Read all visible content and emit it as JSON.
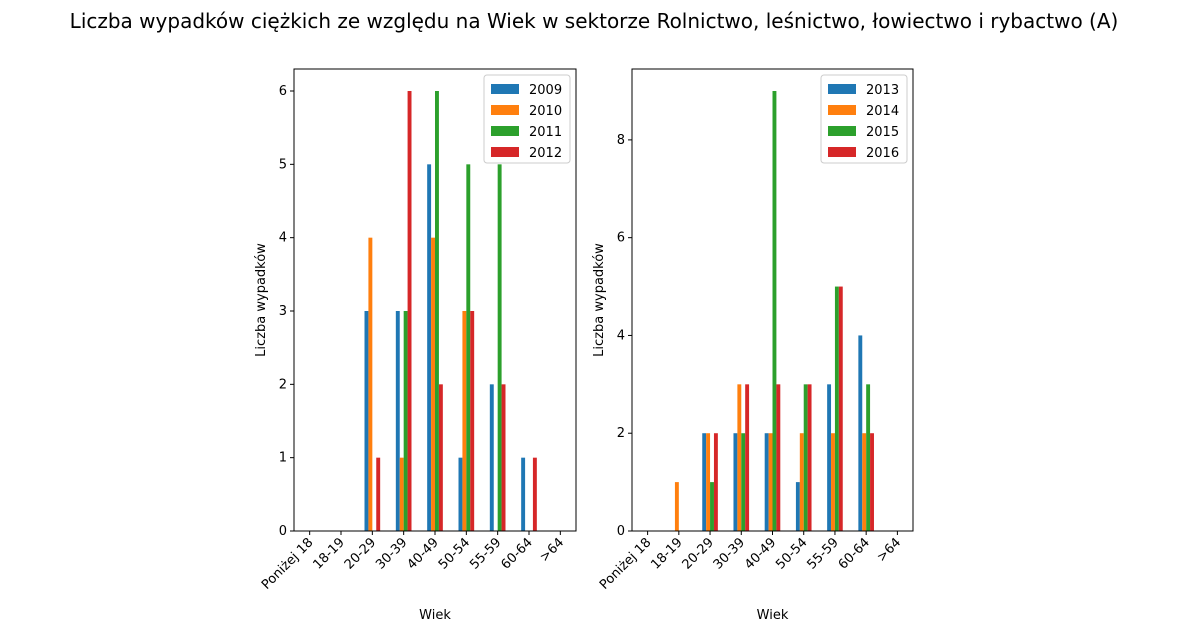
{
  "figure": {
    "title": "Liczba wypadków ciężkich ze względu na Wiek w sektorze Rolnictwo, leśnictwo, łowiectwo i rybactwo (A)"
  },
  "colors": [
    "#1f77b4",
    "#ff7f0e",
    "#2ca02c",
    "#d62728"
  ],
  "chart_data": [
    {
      "type": "bar",
      "title": "",
      "xlabel": "Wiek",
      "ylabel": "Liczba wypadków",
      "categories": [
        "Poniżej 18",
        "18-19",
        "20-29",
        "30-39",
        "40-49",
        "50-54",
        "55-59",
        "60-64",
        ">64"
      ],
      "ylim": [
        0,
        6.3
      ],
      "yticks": [
        0,
        1,
        2,
        3,
        4,
        5,
        6
      ],
      "legend_position": "top-right",
      "series": [
        {
          "name": "2009",
          "values": [
            0,
            0,
            3,
            3,
            5,
            1,
            2,
            1,
            0
          ]
        },
        {
          "name": "2010",
          "values": [
            0,
            0,
            4,
            1,
            4,
            3,
            0,
            0,
            0
          ]
        },
        {
          "name": "2011",
          "values": [
            0,
            0,
            0,
            3,
            6,
            5,
            5,
            0,
            0
          ]
        },
        {
          "name": "2012",
          "values": [
            0,
            0,
            1,
            6,
            2,
            3,
            2,
            1,
            0
          ]
        }
      ]
    },
    {
      "type": "bar",
      "title": "",
      "xlabel": "Wiek",
      "ylabel": "Liczba wypadków",
      "categories": [
        "Poniżej 18",
        "18-19",
        "20-29",
        "30-39",
        "40-49",
        "50-54",
        "55-59",
        "60-64",
        ">64"
      ],
      "ylim": [
        0,
        9.45
      ],
      "yticks": [
        0,
        2,
        4,
        6,
        8
      ],
      "legend_position": "top-right",
      "series": [
        {
          "name": "2013",
          "values": [
            0,
            0,
            2,
            2,
            2,
            1,
            3,
            4,
            0
          ]
        },
        {
          "name": "2014",
          "values": [
            0,
            1,
            2,
            3,
            2,
            2,
            2,
            2,
            0
          ]
        },
        {
          "name": "2015",
          "values": [
            0,
            0,
            1,
            2,
            9,
            3,
            5,
            3,
            0
          ]
        },
        {
          "name": "2016",
          "values": [
            0,
            0,
            2,
            3,
            3,
            3,
            5,
            2,
            0
          ]
        }
      ]
    }
  ]
}
